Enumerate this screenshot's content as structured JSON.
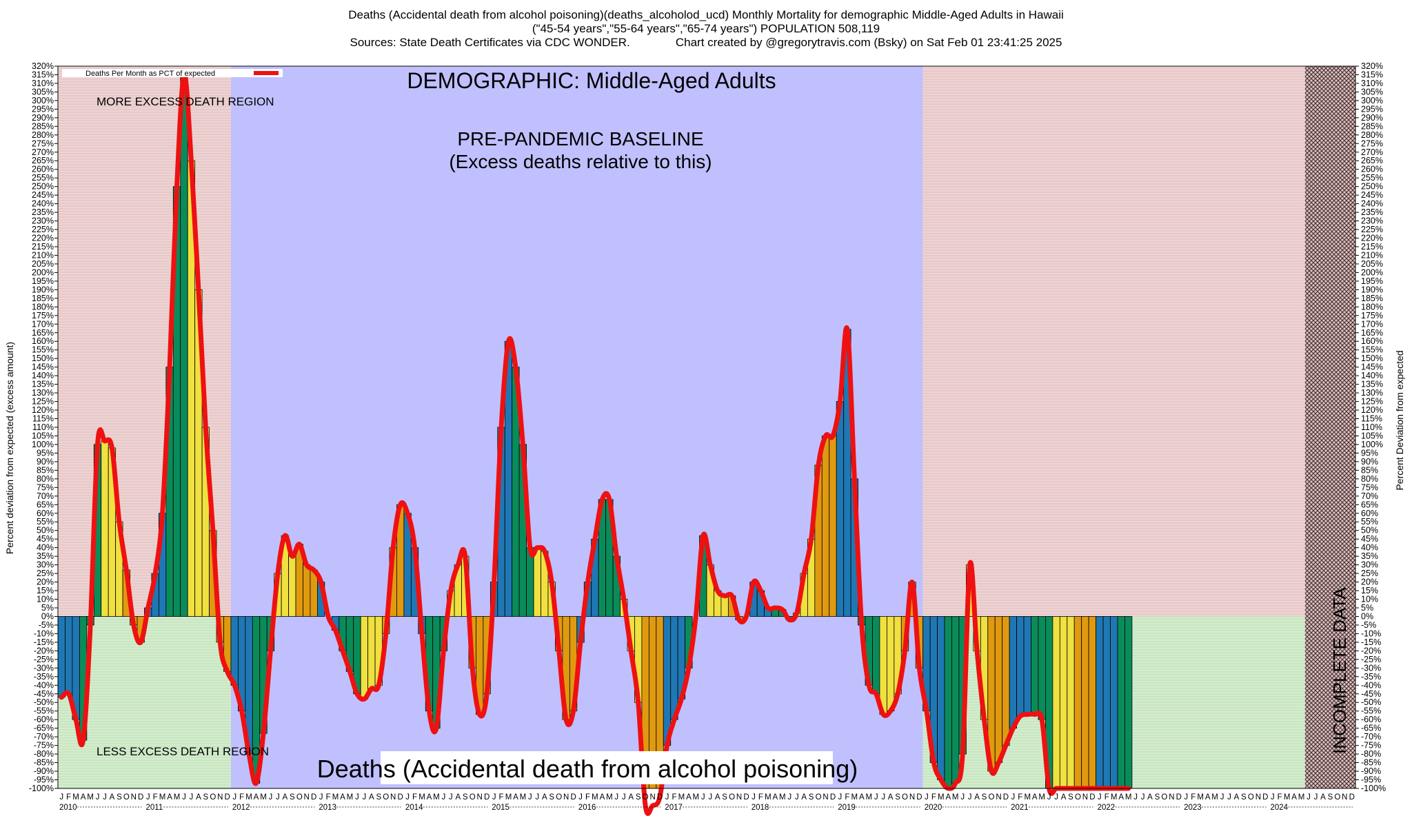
{
  "header": {
    "title_line1": "Deaths (Accidental death from alcohol poisoning)(deaths_alcoholod_ucd) Monthly Mortality for demographic Middle-Aged Adults in Hawaii",
    "title_line2": "(\"45-54 years\",\"55-64 years\",\"65-74 years\") POPULATION 508,119",
    "title_line3": "Sources: State Death Certificates via CDC WONDER.              Chart created by @gregorytravis.com (Bsky) on Sat Feb 01 23:41:25 2025"
  },
  "chart_data": {
    "type": "bar",
    "ylabel_left": "Percent deviation from expected (excess amount)",
    "ylabel_right": "Percent Deviation from expected",
    "legend_label": "Deaths Per Month as PCT of expected",
    "demographic_label": "DEMOGRAPHIC: Middle-Aged Adults",
    "baseline_label_line1": "PRE-PANDEMIC BASELINE",
    "baseline_label_line2": "(Excess deaths relative to this)",
    "more_excess_label": "MORE EXCESS DEATH REGION",
    "less_excess_label": "LESS EXCESS DEATH REGION",
    "incomplete_label": "INCOMPLETE DATA",
    "bottom_label": "Deaths (Accidental death from alcohol poisoning)",
    "ylim": [
      -100,
      320
    ],
    "ytick_step": 5,
    "years": [
      "2010",
      "2011",
      "2012",
      "2013",
      "2014",
      "2015",
      "2016",
      "2017",
      "2018",
      "2019",
      "2020",
      "2021",
      "2022",
      "2023",
      "2024"
    ],
    "month_letters": [
      "J",
      "F",
      "M",
      "A",
      "M",
      "J",
      "J",
      "A",
      "S",
      "O",
      "N",
      "D"
    ],
    "baseline_years": [
      "2012",
      "2019"
    ],
    "incomplete_from": "2024-06",
    "bar_colors": [
      "#1f78b4",
      "#0a8c5a",
      "#f0e040",
      "#e09a10"
    ],
    "line_color": "#ee1111",
    "colors": {
      "more_region": "#e8c8c8",
      "less_region": "#c8e6c0",
      "baseline_region": "#c0c0ff",
      "incomplete_hatch": "#553333"
    },
    "values": [
      -47,
      -45,
      -60,
      -72,
      -5,
      100,
      102,
      98,
      55,
      27,
      -5,
      -15,
      5,
      25,
      60,
      145,
      250,
      315,
      265,
      190,
      110,
      50,
      -15,
      -32,
      -40,
      -55,
      -80,
      -97,
      -68,
      -20,
      25,
      47,
      35,
      42,
      30,
      27,
      20,
      0,
      -8,
      -20,
      -32,
      -45,
      -48,
      -42,
      -40,
      -10,
      40,
      65,
      60,
      40,
      -10,
      -55,
      -65,
      -20,
      15,
      30,
      35,
      -30,
      -57,
      -45,
      20,
      110,
      160,
      145,
      100,
      40,
      40,
      38,
      20,
      -20,
      -60,
      -55,
      -15,
      20,
      45,
      68,
      68,
      35,
      10,
      -20,
      -50,
      -110,
      -110,
      -105,
      -75,
      -60,
      -48,
      -30,
      0,
      47,
      30,
      15,
      12,
      12,
      -2,
      0,
      20,
      15,
      5,
      5,
      4,
      -2,
      2,
      25,
      45,
      88,
      105,
      105,
      125,
      167,
      80,
      -5,
      -40,
      -45,
      -57,
      -55,
      -45,
      -20,
      20,
      -30,
      -55,
      -85,
      -95,
      -100,
      -97,
      -80,
      30,
      -20,
      -60,
      -90,
      -85,
      -75,
      -65,
      -58,
      -57,
      -57,
      -60,
      -100,
      -100,
      -100,
      -100,
      -100,
      -100,
      -100,
      -100,
      -100,
      -100,
      -100,
      -100
    ]
  }
}
